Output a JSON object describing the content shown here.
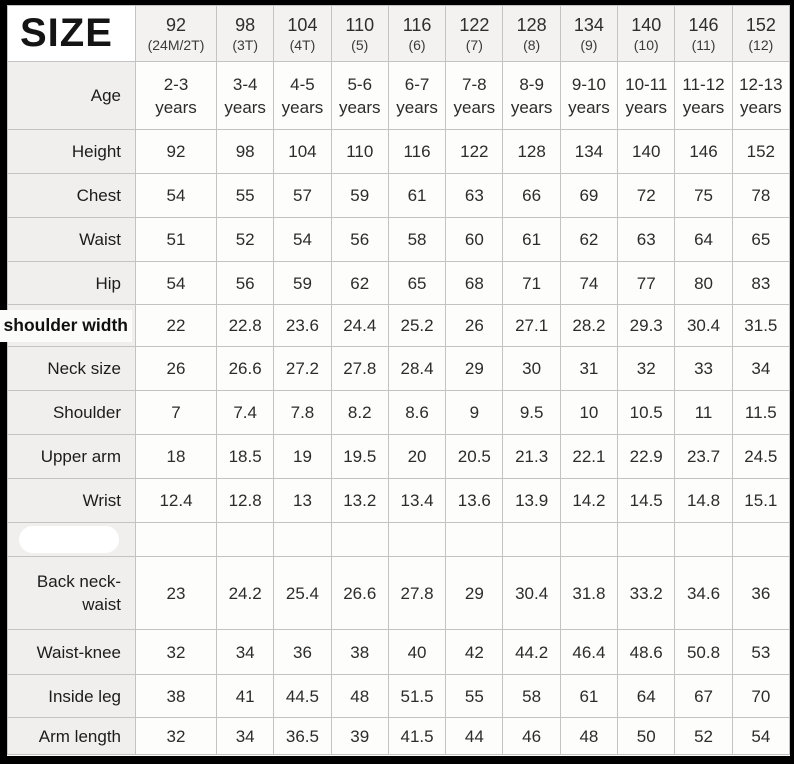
{
  "accent_colors": {
    "label_column_bg": "#f0efee",
    "header_bg": "#f3f2f1",
    "cell_bg": "#fdfdfc",
    "border": "#c3c3c3",
    "frame": "#000000"
  },
  "chart_data": {
    "type": "table",
    "title": "SIZE",
    "corner_label": "SIZE",
    "columns": [
      {
        "size": "92",
        "alt": "(24M/2T)"
      },
      {
        "size": "98",
        "alt": "(3T)"
      },
      {
        "size": "104",
        "alt": "(4T)"
      },
      {
        "size": "110",
        "alt": "(5)"
      },
      {
        "size": "116",
        "alt": "(6)"
      },
      {
        "size": "122",
        "alt": "(7)"
      },
      {
        "size": "128",
        "alt": "(8)"
      },
      {
        "size": "134",
        "alt": "(9)"
      },
      {
        "size": "140",
        "alt": "(10)"
      },
      {
        "size": "146",
        "alt": "(11)"
      },
      {
        "size": "152",
        "alt": "(12)"
      }
    ],
    "rows": [
      {
        "label": "Age",
        "values": [
          "2-3\nyears",
          "3-4\nyears",
          "4-5\nyears",
          "5-6\nyears",
          "6-7\nyears",
          "7-8\nyears",
          "8-9\nyears",
          "9-10\nyears",
          "10-11\nyears",
          "11-12\nyears",
          "12-13\nyears"
        ]
      },
      {
        "label": "Height",
        "values": [
          "92",
          "98",
          "104",
          "110",
          "116",
          "122",
          "128",
          "134",
          "140",
          "146",
          "152"
        ]
      },
      {
        "label": "Chest",
        "values": [
          "54",
          "55",
          "57",
          "59",
          "61",
          "63",
          "66",
          "69",
          "72",
          "75",
          "78"
        ]
      },
      {
        "label": "Waist",
        "values": [
          "51",
          "52",
          "54",
          "56",
          "58",
          "60",
          "61",
          "62",
          "63",
          "64",
          "65"
        ]
      },
      {
        "label": "Hip",
        "values": [
          "54",
          "56",
          "59",
          "62",
          "65",
          "68",
          "71",
          "74",
          "77",
          "80",
          "83"
        ]
      },
      {
        "label": "shoulder width",
        "highlight": true,
        "values": [
          "22",
          "22.8",
          "23.6",
          "24.4",
          "25.2",
          "26",
          "27.1",
          "28.2",
          "29.3",
          "30.4",
          "31.5"
        ]
      },
      {
        "label": "Neck size",
        "values": [
          "26",
          "26.6",
          "27.2",
          "27.8",
          "28.4",
          "29",
          "30",
          "31",
          "32",
          "33",
          "34"
        ]
      },
      {
        "label": "Shoulder",
        "values": [
          "7",
          "7.4",
          "7.8",
          "8.2",
          "8.6",
          "9",
          "9.5",
          "10",
          "10.5",
          "11",
          "11.5"
        ]
      },
      {
        "label": "Upper arm",
        "values": [
          "18",
          "18.5",
          "19",
          "19.5",
          "20",
          "20.5",
          "21.3",
          "22.1",
          "22.9",
          "23.7",
          "24.5"
        ]
      },
      {
        "label": "Wrist",
        "values": [
          "12.4",
          "12.8",
          "13",
          "13.2",
          "13.4",
          "13.6",
          "13.9",
          "14.2",
          "14.5",
          "14.8",
          "15.1"
        ]
      },
      {
        "label": "",
        "erased": true,
        "values": [
          "",
          "",
          "",
          "",
          "",
          "",
          "",
          "",
          "",
          "",
          ""
        ]
      },
      {
        "label": "Back neck-\nwaist",
        "values": [
          "23",
          "24.2",
          "25.4",
          "26.6",
          "27.8",
          "29",
          "30.4",
          "31.8",
          "33.2",
          "34.6",
          "36"
        ]
      },
      {
        "label": "Waist-knee",
        "values": [
          "32",
          "34",
          "36",
          "38",
          "40",
          "42",
          "44.2",
          "46.4",
          "48.6",
          "50.8",
          "53"
        ]
      },
      {
        "label": "Inside leg",
        "values": [
          "38",
          "41",
          "44.5",
          "48",
          "51.5",
          "55",
          "58",
          "61",
          "64",
          "67",
          "70"
        ]
      },
      {
        "label": "Arm length",
        "values": [
          "32",
          "34",
          "36.5",
          "39",
          "41.5",
          "44",
          "46",
          "48",
          "50",
          "52",
          "54"
        ]
      }
    ]
  }
}
